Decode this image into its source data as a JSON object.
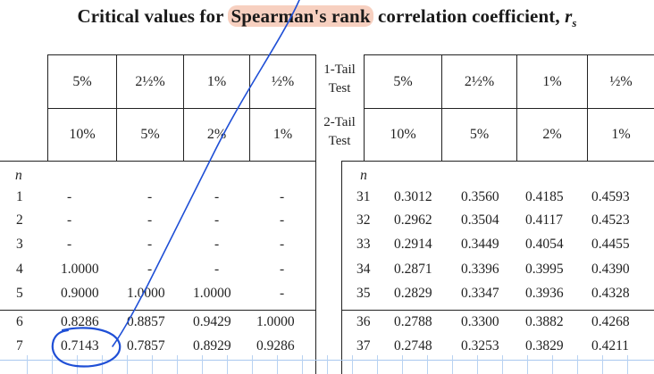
{
  "title": {
    "pre": "Critical values for ",
    "highlight": "Spearman's rank",
    "post": " correlation coefficient, ",
    "var": "r",
    "sub": "s"
  },
  "headers": {
    "one_tail_label": "1-Tail Test",
    "two_tail_label": "2-Tail Test",
    "one_tail": [
      "5%",
      "2½%",
      "1%",
      "½%"
    ],
    "two_tail": [
      "10%",
      "5%",
      "2%",
      "1%"
    ],
    "n_label": "n"
  },
  "left_rows": [
    {
      "n": "1",
      "v": [
        "-",
        "-",
        "-",
        "-"
      ]
    },
    {
      "n": "2",
      "v": [
        "-",
        "-",
        "-",
        "-"
      ]
    },
    {
      "n": "3",
      "v": [
        "-",
        "-",
        "-",
        "-"
      ]
    },
    {
      "n": "4",
      "v": [
        "1.0000",
        "-",
        "-",
        "-"
      ]
    },
    {
      "n": "5",
      "v": [
        "0.9000",
        "1.0000",
        "1.0000",
        "-"
      ]
    },
    {
      "n": "6",
      "v": [
        "0.8286",
        "0.8857",
        "0.9429",
        "1.0000"
      ]
    },
    {
      "n": "7",
      "v": [
        "0.7143",
        "0.7857",
        "0.8929",
        "0.9286"
      ]
    }
  ],
  "right_rows": [
    {
      "n": "31",
      "v": [
        "0.3012",
        "0.3560",
        "0.4185",
        "0.4593"
      ]
    },
    {
      "n": "32",
      "v": [
        "0.2962",
        "0.3504",
        "0.4117",
        "0.4523"
      ]
    },
    {
      "n": "33",
      "v": [
        "0.2914",
        "0.3449",
        "0.4054",
        "0.4455"
      ]
    },
    {
      "n": "34",
      "v": [
        "0.2871",
        "0.3396",
        "0.3995",
        "0.4390"
      ]
    },
    {
      "n": "35",
      "v": [
        "0.2829",
        "0.3347",
        "0.3936",
        "0.4328"
      ]
    },
    {
      "n": "36",
      "v": [
        "0.2788",
        "0.3300",
        "0.3882",
        "0.4268"
      ]
    },
    {
      "n": "37",
      "v": [
        "0.2748",
        "0.3253",
        "0.3829",
        "0.4211"
      ]
    }
  ],
  "colors": {
    "highlight": "#f0aa8c",
    "annotation": "#1f4fd6",
    "grid": "#a9c8ef"
  }
}
